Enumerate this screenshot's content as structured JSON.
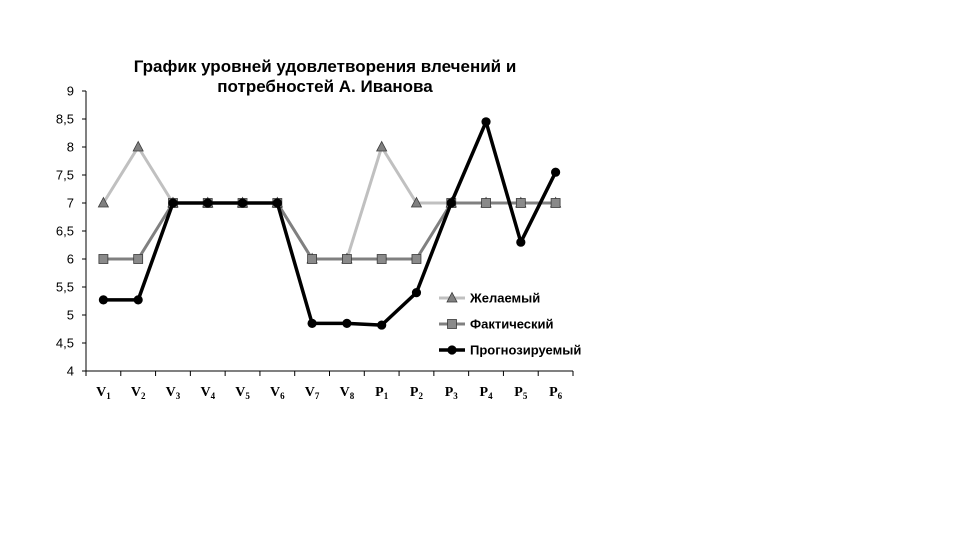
{
  "chart_data": {
    "type": "line",
    "title_lines": [
      "График уровней удовлетворения влечений и",
      "потребностей А. Иванова"
    ],
    "categories": [
      {
        "letter": "V",
        "sub": "1"
      },
      {
        "letter": "V",
        "sub": "2"
      },
      {
        "letter": "V",
        "sub": "3"
      },
      {
        "letter": "V",
        "sub": "4"
      },
      {
        "letter": "V",
        "sub": "5"
      },
      {
        "letter": "V",
        "sub": "6"
      },
      {
        "letter": "V",
        "sub": "7"
      },
      {
        "letter": "V",
        "sub": "8"
      },
      {
        "letter": "P",
        "sub": "1"
      },
      {
        "letter": "P",
        "sub": "2"
      },
      {
        "letter": "P",
        "sub": "3"
      },
      {
        "letter": "P",
        "sub": "4"
      },
      {
        "letter": "P",
        "sub": "5"
      },
      {
        "letter": "P",
        "sub": "6"
      }
    ],
    "yticks": [
      "4",
      "4,5",
      "5",
      "5,5",
      "6",
      "6,5",
      "7",
      "7,5",
      "8",
      "8,5",
      "9"
    ],
    "ylim": [
      4,
      9
    ],
    "ystep": 0.5,
    "grid": false,
    "legend_position": "right",
    "series": [
      {
        "name": "Желаемый",
        "marker": "triangle",
        "color": "#c0c0c0",
        "marker_color": "#808080",
        "values": [
          7,
          8,
          7,
          7,
          7,
          7,
          6,
          6,
          8,
          7,
          7,
          7,
          7,
          7
        ]
      },
      {
        "name": "Фактический",
        "marker": "square",
        "color": "#808080",
        "marker_color": "#8a8a8a",
        "values": [
          6,
          6,
          7,
          7,
          7,
          7,
          6,
          6,
          6,
          6,
          7,
          7,
          7,
          7
        ]
      },
      {
        "name": "Прогнозируемый",
        "marker": "circle",
        "color": "#000000",
        "marker_color": "#000000",
        "values": [
          5.27,
          5.27,
          7,
          7,
          7,
          7,
          4.85,
          4.85,
          4.82,
          5.4,
          7,
          8.45,
          6.3,
          7.55
        ]
      }
    ]
  }
}
